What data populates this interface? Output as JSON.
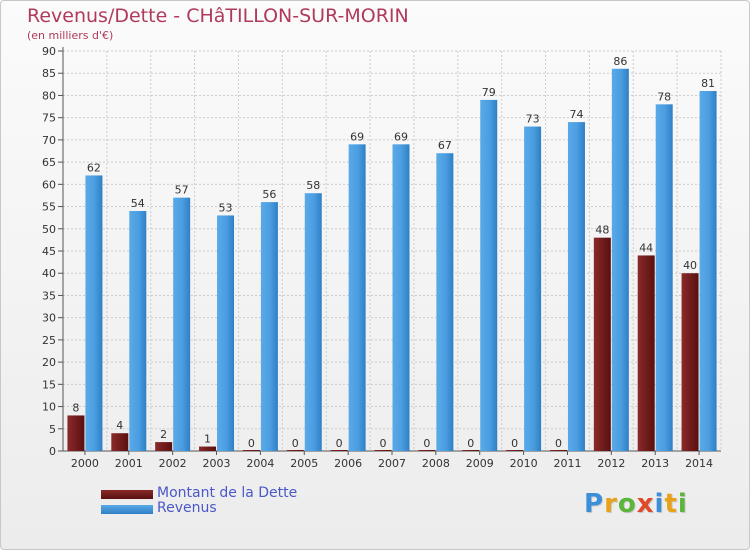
{
  "title": "Revenus/Dette - CHâTILLON-SUR-MORIN",
  "subtitle": "(en milliers d'€)",
  "logo": {
    "text": "Proxiti",
    "letter_colors": [
      "#3a8fd8",
      "#e8a21a",
      "#5bb53b",
      "#e04a2a",
      "#3a8fd8",
      "#e8a21a",
      "#5bb53b"
    ]
  },
  "colors": {
    "dette": "#6e1a1a",
    "revenus": "#3d8fd6",
    "grid": "#cccccc",
    "axis": "#555555"
  },
  "chart_data": {
    "type": "bar",
    "title": "Revenus/Dette - CHâTILLON-SUR-MORIN",
    "subtitle": "(en milliers d'€)",
    "xlabel": "",
    "ylabel": "",
    "categories": [
      "2000",
      "2001",
      "2002",
      "2003",
      "2004",
      "2005",
      "2006",
      "2007",
      "2008",
      "2009",
      "2010",
      "2011",
      "2012",
      "2013",
      "2014"
    ],
    "ylim": [
      0,
      90
    ],
    "yticks": [
      0,
      5,
      10,
      15,
      20,
      25,
      30,
      35,
      40,
      45,
      50,
      55,
      60,
      65,
      70,
      75,
      80,
      85,
      90
    ],
    "grid": true,
    "legend_position": "bottom-left",
    "series": [
      {
        "name": "Montant de la Dette",
        "values": [
          8,
          4,
          2,
          1,
          0,
          0,
          0,
          0,
          0,
          0,
          0,
          0,
          48,
          44,
          40
        ]
      },
      {
        "name": "Revenus",
        "values": [
          62,
          54,
          57,
          53,
          56,
          58,
          69,
          69,
          67,
          79,
          73,
          74,
          86,
          78,
          81
        ]
      }
    ]
  }
}
